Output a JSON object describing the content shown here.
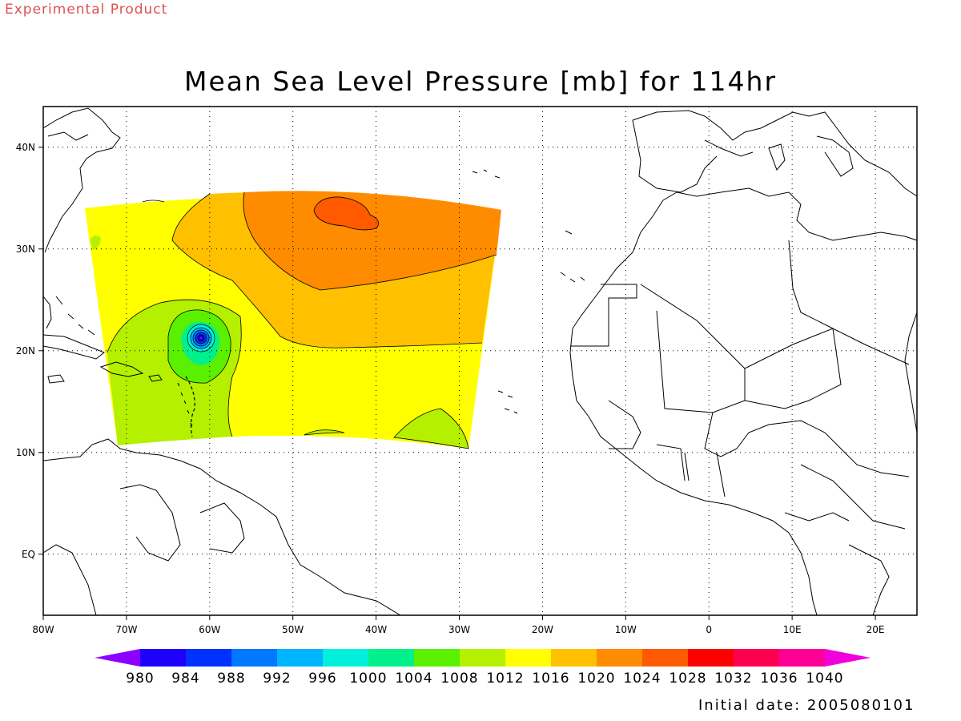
{
  "header": {
    "experimental": "Experimental Product",
    "title": "Mean Sea Level Pressure [mb] for 114hr"
  },
  "footer": {
    "initial_date": "Initial date: 2005080101"
  },
  "map": {
    "lon_range": [
      -80,
      25
    ],
    "lat_range": [
      -6,
      44
    ],
    "lon_ticks": [
      {
        "lon": -80,
        "label": "80W"
      },
      {
        "lon": -70,
        "label": "70W"
      },
      {
        "lon": -60,
        "label": "60W"
      },
      {
        "lon": -50,
        "label": "50W"
      },
      {
        "lon": -40,
        "label": "40W"
      },
      {
        "lon": -30,
        "label": "30W"
      },
      {
        "lon": -20,
        "label": "20W"
      },
      {
        "lon": -10,
        "label": "10W"
      },
      {
        "lon": 0,
        "label": "0"
      },
      {
        "lon": 10,
        "label": "10E"
      },
      {
        "lon": 20,
        "label": "20E"
      }
    ],
    "lat_ticks": [
      {
        "lat": 40,
        "label": "40N"
      },
      {
        "lat": 30,
        "label": "30N"
      },
      {
        "lat": 20,
        "label": "20N"
      },
      {
        "lat": 10,
        "label": "10N"
      },
      {
        "lat": 0,
        "label": "EQ"
      }
    ],
    "grid": true,
    "field_colors": {
      "pressure_1012_1016": "#ffff00",
      "pressure_1016_1020": "#ffc000",
      "pressure_1020_1024": "#ff8c00",
      "pressure_1024_1028": "#ff5a00",
      "pressure_1008_1012": "#b4f000",
      "pressure_1004_1008": "#5af000",
      "pressure_1000_1004": "#00f07a",
      "pressure_996_1000": "#00f0c8",
      "pressure_below_996": "#0064ff"
    },
    "cyclone_center": {
      "lon": -61,
      "lat": 22
    }
  },
  "colorbar": {
    "levels": [
      980,
      984,
      988,
      992,
      996,
      1000,
      1004,
      1008,
      1012,
      1016,
      1020,
      1024,
      1028,
      1032,
      1036,
      1040
    ],
    "colors": [
      "#8c00ff",
      "#1e00ff",
      "#0032ff",
      "#0078ff",
      "#00b4ff",
      "#00f0dc",
      "#00f08c",
      "#5af000",
      "#b4f000",
      "#ffff00",
      "#ffc000",
      "#ff8c00",
      "#ff5a00",
      "#ff0000",
      "#ff0050",
      "#ff0096",
      "#f000dc"
    ]
  }
}
